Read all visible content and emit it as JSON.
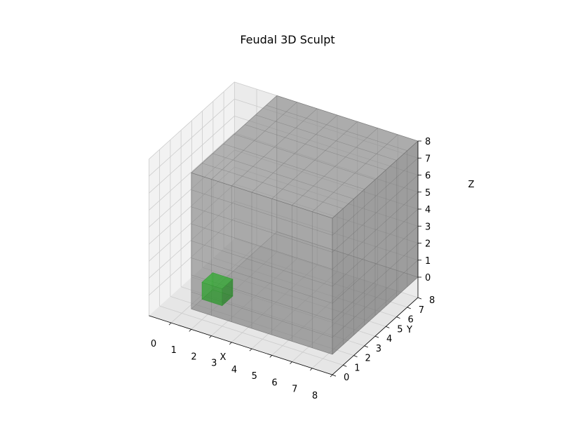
{
  "chart_data": {
    "type": "voxel",
    "title": "Feudal 3D Sculpt",
    "xlabel": "X",
    "ylabel": "Y",
    "zlabel": "Z",
    "xlim": [
      0,
      8
    ],
    "ylim": [
      0,
      8
    ],
    "zlim": [
      0,
      8
    ],
    "xticks": [
      "0",
      "1",
      "2",
      "3",
      "4",
      "5",
      "6",
      "7",
      "8"
    ],
    "yticks": [
      "0",
      "1",
      "2",
      "3",
      "4",
      "5",
      "6",
      "7",
      "8"
    ],
    "zticks": [
      "0",
      "1",
      "2",
      "3",
      "4",
      "5",
      "6",
      "7",
      "8"
    ],
    "grid": true,
    "voxels": [
      {
        "name": "solid-block",
        "x": [
          1,
          8
        ],
        "y": [
          0,
          8
        ],
        "z": [
          0,
          8
        ],
        "color": "#808080",
        "alpha": 0.7
      },
      {
        "name": "green-voxel",
        "x": [
          1,
          2
        ],
        "y": [
          1,
          2
        ],
        "z": [
          0,
          1
        ],
        "color": "#2ca02c",
        "alpha": 0.9
      }
    ]
  }
}
